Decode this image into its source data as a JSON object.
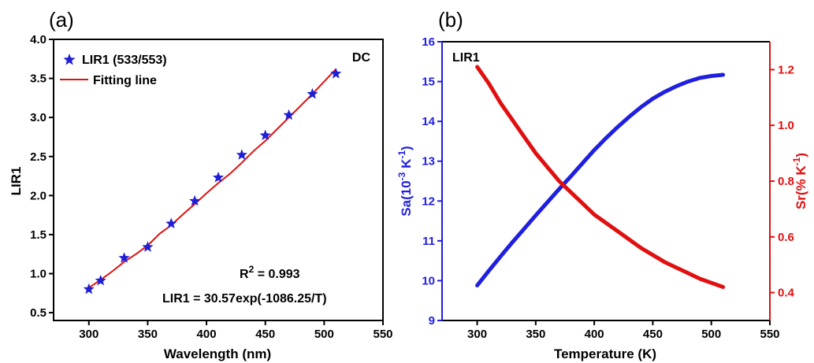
{
  "chart_data": [
    {
      "panel": "(a)",
      "type": "scatter",
      "xlabel": "Wavelength (nm)",
      "ylabel": "LIR1",
      "xlim": [
        270,
        550
      ],
      "ylim": [
        0.4,
        4.0
      ],
      "xticks": [
        300,
        350,
        400,
        450,
        500,
        550
      ],
      "yticks": [
        0.5,
        1.0,
        1.5,
        2.0,
        2.5,
        3.0,
        3.5,
        4.0
      ],
      "legend_position": "top-left",
      "corner_label": "DC",
      "annotations": {
        "r2_base": "R",
        "r2_sup": "2",
        "r2_rest": " = 0.993",
        "equation": "LIR1 = 30.57exp(-1086.25/T)"
      },
      "series": [
        {
          "name": "LIR1 (533/553)",
          "kind": "scatter",
          "marker": "star",
          "color": "#1f1fd6",
          "x": [
            300,
            310,
            330,
            350,
            370,
            390,
            410,
            430,
            450,
            470,
            490,
            510
          ],
          "y": [
            0.8,
            0.91,
            1.2,
            1.34,
            1.64,
            1.93,
            2.23,
            2.52,
            2.77,
            3.03,
            3.3,
            3.56
          ]
        },
        {
          "name": "Fitting line",
          "kind": "line",
          "color": "#e01010",
          "x": [
            300,
            310,
            320,
            330,
            340,
            350,
            360,
            370,
            380,
            390,
            400,
            410,
            420,
            430,
            440,
            450,
            460,
            470,
            480,
            490,
            500,
            510
          ],
          "y": [
            0.82,
            0.92,
            1.03,
            1.15,
            1.25,
            1.36,
            1.51,
            1.62,
            1.76,
            1.89,
            2.03,
            2.16,
            2.28,
            2.42,
            2.57,
            2.7,
            2.85,
            3.0,
            3.15,
            3.3,
            3.46,
            3.62
          ]
        }
      ]
    },
    {
      "panel": "(b)",
      "type": "line",
      "xlabel": "Temperature (K)",
      "ylabel_left_base": "Sa(10",
      "ylabel_left_sup": "-3",
      "ylabel_left_mid": " K",
      "ylabel_left_sup2": "-1",
      "ylabel_left_end": ")",
      "ylabel_right_base": "Sr(% K",
      "ylabel_right_sup": "-1",
      "ylabel_right_end": ")",
      "xlim": [
        270,
        550
      ],
      "ylim_left": [
        9,
        16
      ],
      "ylim_right": [
        0.3,
        1.3
      ],
      "xticks": [
        300,
        350,
        400,
        450,
        500,
        550
      ],
      "yticks_left": [
        9,
        10,
        11,
        12,
        13,
        14,
        15,
        16
      ],
      "yticks_right": [
        0.4,
        0.6,
        0.8,
        1.0,
        1.2
      ],
      "corner_label": "LIR1",
      "left_axis_color": "#1f1fe0",
      "right_axis_color": "#e01010",
      "series": [
        {
          "axis": "left",
          "color": "#1f1fe0",
          "x": [
            300,
            310,
            320,
            330,
            340,
            350,
            360,
            370,
            380,
            390,
            400,
            410,
            420,
            430,
            440,
            450,
            460,
            470,
            480,
            490,
            500,
            510
          ],
          "y": [
            9.88,
            10.25,
            10.61,
            10.96,
            11.3,
            11.64,
            11.97,
            12.3,
            12.62,
            12.95,
            13.28,
            13.58,
            13.86,
            14.12,
            14.36,
            14.57,
            14.74,
            14.88,
            15.0,
            15.09,
            15.14,
            15.17
          ]
        },
        {
          "axis": "right",
          "color": "#e01010",
          "x": [
            300,
            310,
            320,
            330,
            340,
            350,
            360,
            370,
            380,
            390,
            400,
            410,
            420,
            430,
            440,
            450,
            460,
            470,
            480,
            490,
            500,
            510
          ],
          "y": [
            1.21,
            1.15,
            1.08,
            1.02,
            0.96,
            0.9,
            0.85,
            0.8,
            0.76,
            0.72,
            0.68,
            0.65,
            0.62,
            0.59,
            0.56,
            0.535,
            0.51,
            0.49,
            0.47,
            0.45,
            0.435,
            0.42
          ]
        }
      ]
    }
  ]
}
